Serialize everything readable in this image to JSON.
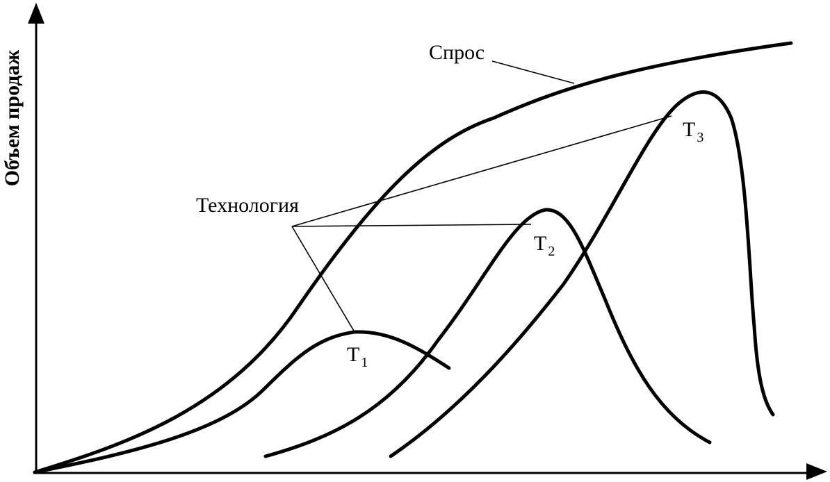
{
  "y_axis_label": "Объем продаж",
  "demand_label": "Спрос",
  "technology_label": "Технология",
  "tech_curves": [
    {
      "letter": "T",
      "index": "1"
    },
    {
      "letter": "T",
      "index": "2"
    },
    {
      "letter": "T",
      "index": "3"
    }
  ]
}
